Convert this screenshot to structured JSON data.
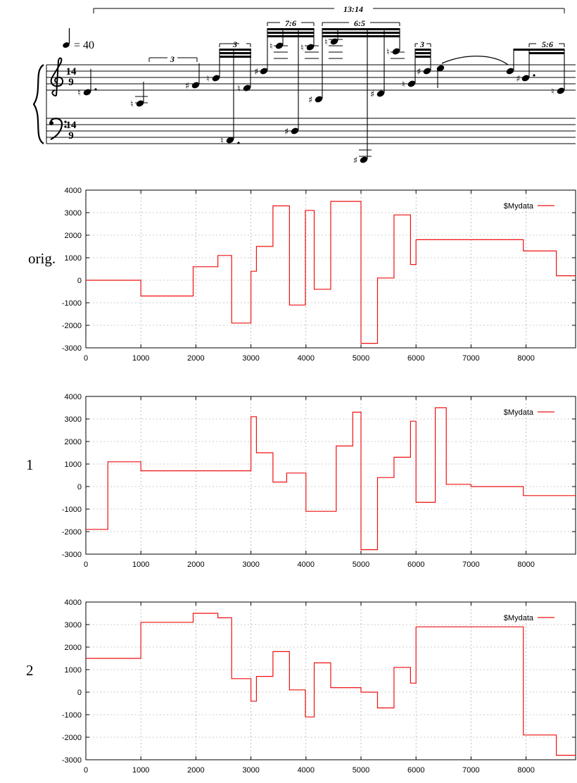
{
  "score": {
    "tempo": "= 40",
    "tuplets": [
      "13:14",
      "3",
      "3",
      "7:6",
      "6:5",
      "3",
      "5:6"
    ],
    "time_signature_top": "14",
    "time_signature_bottom": "9"
  },
  "row_labels": [
    "orig.",
    "1",
    "2"
  ],
  "series_color": "#ee1111",
  "chart_data": [
    {
      "type": "line",
      "step": true,
      "series": [
        {
          "name": "$Mydata",
          "x": [
            0,
            1000,
            1950,
            2400,
            2650,
            3000,
            3100,
            3400,
            3700,
            3990,
            4150,
            4450,
            5000,
            5300,
            5600,
            5900,
            6000,
            7950,
            8550,
            8900
          ],
          "y": [
            0,
            -700,
            600,
            1100,
            -1900,
            400,
            1500,
            3300,
            -1100,
            3100,
            -400,
            3500,
            -2800,
            100,
            2900,
            700,
            1800,
            1300,
            200,
            200
          ]
        }
      ],
      "xlim": [
        0,
        8900
      ],
      "ylim": [
        -3000,
        4000
      ],
      "xticks": [
        "0",
        "1000",
        "2000",
        "3000",
        "4000",
        "5000",
        "6000",
        "7000",
        "8000"
      ],
      "yticks": [
        "4000",
        "3000",
        "2000",
        "1000",
        "0",
        "-1000",
        "-2000",
        "-3000"
      ],
      "grid": true,
      "legend": "top-right"
    },
    {
      "type": "line",
      "step": true,
      "series": [
        {
          "name": "$Mydata",
          "x": [
            0,
            400,
            1000,
            3000,
            3100,
            3400,
            3650,
            4000,
            4550,
            4850,
            5000,
            5300,
            5600,
            5900,
            6000,
            6350,
            6550,
            7000,
            7950,
            8900
          ],
          "y": [
            -1900,
            1100,
            700,
            3100,
            1500,
            200,
            600,
            -1100,
            1800,
            3300,
            -2800,
            400,
            1300,
            2900,
            -700,
            3500,
            100,
            0,
            -400,
            -400
          ]
        }
      ],
      "xlim": [
        0,
        8900
      ],
      "ylim": [
        -3000,
        4000
      ],
      "xticks": [
        "0",
        "1000",
        "2000",
        "3000",
        "4000",
        "5000",
        "6000",
        "7000",
        "8000"
      ],
      "yticks": [
        "4000",
        "3000",
        "2000",
        "1000",
        "0",
        "-1000",
        "-2000",
        "-3000"
      ],
      "grid": true,
      "legend": "top-right"
    },
    {
      "type": "line",
      "step": true,
      "series": [
        {
          "name": "$Mydata",
          "x": [
            0,
            1000,
            1950,
            2400,
            2650,
            3000,
            3100,
            3400,
            3700,
            3990,
            4150,
            4450,
            5000,
            5300,
            5600,
            5900,
            6000,
            7950,
            8550,
            8900
          ],
          "y": [
            1500,
            3100,
            3500,
            3300,
            600,
            -400,
            700,
            1800,
            100,
            -1100,
            1300,
            200,
            0,
            -700,
            1100,
            400,
            2900,
            -1900,
            -2800,
            -2800
          ]
        }
      ],
      "xlim": [
        0,
        8900
      ],
      "ylim": [
        -3000,
        4000
      ],
      "xticks": [
        "0",
        "1000",
        "2000",
        "3000",
        "4000",
        "5000",
        "6000",
        "7000",
        "8000"
      ],
      "yticks": [
        "4000",
        "3000",
        "2000",
        "1000",
        "0",
        "-1000",
        "-2000",
        "-3000"
      ],
      "grid": true,
      "legend": "top-right"
    }
  ]
}
